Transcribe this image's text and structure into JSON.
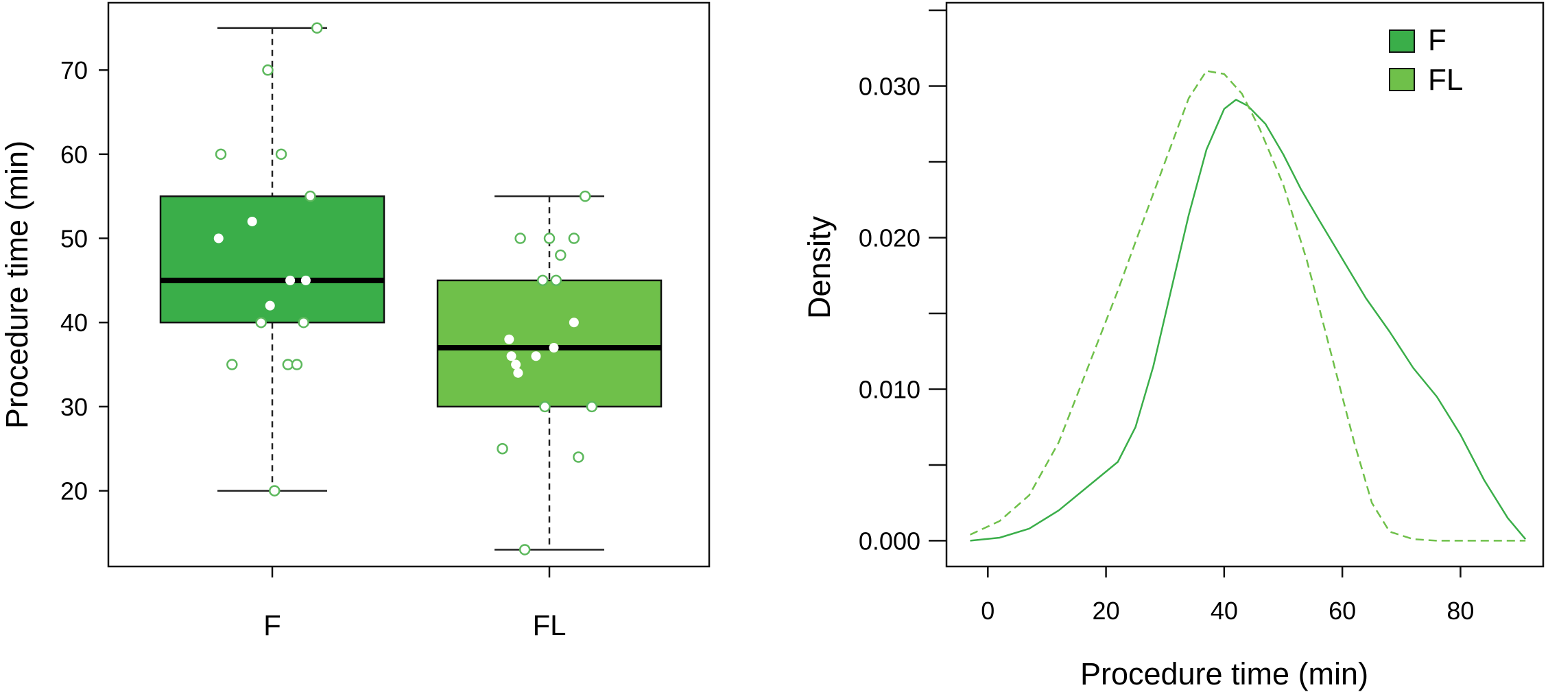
{
  "chart_data": [
    {
      "type": "box",
      "ylabel": "Procedure time (min)",
      "ylim": [
        11,
        78
      ],
      "yticks": [
        20,
        30,
        40,
        50,
        60,
        70
      ],
      "categories": [
        "F",
        "FL"
      ],
      "boxes": [
        {
          "name": "F",
          "whisker_low": 20,
          "q1": 40,
          "median": 45,
          "q3": 55,
          "whisker_high": 75,
          "color": "#3aae49"
        },
        {
          "name": "FL",
          "whisker_low": 13,
          "q1": 30,
          "median": 37,
          "q3": 45,
          "whisker_high": 55,
          "color": "#6fc04a"
        }
      ],
      "points": [
        {
          "group": "F",
          "values": [
            75,
            70,
            60,
            60,
            55,
            52,
            50,
            45,
            45,
            42,
            40,
            40,
            35,
            35,
            35,
            20
          ],
          "jitter": [
            0.2,
            -0.02,
            -0.23,
            0.04,
            0.17,
            -0.09,
            -0.24,
            0.08,
            0.15,
            -0.01,
            -0.05,
            0.14,
            -0.18,
            0.07,
            0.11,
            0.01
          ]
        },
        {
          "group": "FL",
          "values": [
            55,
            50,
            50,
            50,
            48,
            45,
            45,
            40,
            38,
            37,
            36,
            36,
            35,
            34,
            30,
            30,
            25,
            24,
            13
          ],
          "jitter": [
            0.16,
            -0.13,
            0.0,
            0.11,
            0.05,
            -0.03,
            0.03,
            0.11,
            -0.18,
            0.02,
            -0.06,
            -0.17,
            -0.15,
            -0.14,
            -0.02,
            0.19,
            -0.21,
            0.13,
            -0.11
          ]
        }
      ],
      "point_color": "#5cb85c",
      "grid": false
    },
    {
      "type": "line",
      "xlabel": "Procedure time (min)",
      "ylabel": "Density",
      "xlim": [
        -7,
        94
      ],
      "ylim": [
        -0.0017,
        0.0355
      ],
      "xticks": [
        0,
        20,
        40,
        60,
        80
      ],
      "yticks": [
        0.0,
        0.005,
        0.01,
        0.015,
        0.02,
        0.025,
        0.03,
        0.035
      ],
      "ytick_labels": [
        "0.000",
        "",
        "0.010",
        "",
        "0.020",
        "",
        "0.030",
        ""
      ],
      "legend": {
        "position": "top-right",
        "entries": [
          {
            "label": "F",
            "color": "#3aae49"
          },
          {
            "label": "FL",
            "color": "#6fc04a"
          }
        ]
      },
      "series": [
        {
          "name": "F",
          "style": "solid",
          "color": "#3aae49",
          "x": [
            -3,
            2,
            7,
            12,
            17,
            22,
            25,
            28,
            31,
            34,
            37,
            40,
            42,
            44,
            47,
            50,
            53,
            56,
            60,
            64,
            68,
            72,
            76,
            80,
            84,
            88,
            91
          ],
          "y": [
            0.0,
            0.0002,
            0.0008,
            0.002,
            0.0036,
            0.0052,
            0.0075,
            0.0115,
            0.0165,
            0.0215,
            0.0258,
            0.0285,
            0.0291,
            0.0287,
            0.0275,
            0.0255,
            0.0232,
            0.0212,
            0.0186,
            0.016,
            0.0138,
            0.0114,
            0.0095,
            0.007,
            0.004,
            0.0015,
            0.0001
          ]
        },
        {
          "name": "FL",
          "style": "dashed",
          "color": "#6fc04a",
          "x": [
            -3,
            2,
            7,
            12,
            17,
            22,
            26,
            30,
            34,
            37,
            40,
            43,
            46,
            50,
            54,
            58,
            62,
            65,
            68,
            72,
            76,
            80,
            84,
            88,
            91
          ],
          "y": [
            0.0004,
            0.0013,
            0.003,
            0.0065,
            0.0115,
            0.0165,
            0.0208,
            0.025,
            0.0292,
            0.031,
            0.0308,
            0.0295,
            0.0272,
            0.0235,
            0.0185,
            0.0125,
            0.0065,
            0.0025,
            0.0006,
            0.0001,
            0.0,
            0.0,
            0.0,
            0.0,
            0.0
          ]
        }
      ]
    }
  ]
}
